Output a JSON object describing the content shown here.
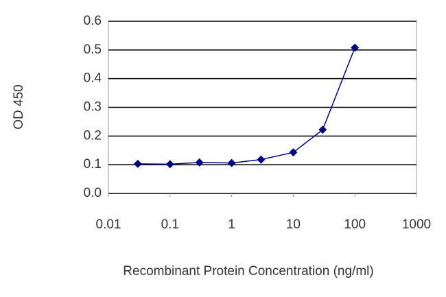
{
  "chart_data": {
    "type": "line",
    "x_label": "Recombinant Protein Concentration (ng/ml)",
    "y_label": "OD 450",
    "x": [
      0.03,
      0.1,
      0.3,
      1,
      3,
      10,
      30,
      100
    ],
    "series": [
      {
        "color": "#000080",
        "values": [
          0.103,
          0.102,
          0.108,
          0.106,
          0.118,
          0.143,
          0.222,
          0.508
        ]
      }
    ],
    "xlim": [
      0.01,
      1000
    ],
    "xticks": [
      0.01,
      0.1,
      1,
      10,
      100,
      1000
    ],
    "xscale": "log",
    "ylim": [
      0,
      0.6
    ],
    "yticks": [
      {
        "value": 0,
        "label": "0.0"
      },
      0.1,
      0.2,
      0.3,
      0.4,
      0.5,
      0.6
    ],
    "grid": true
  }
}
